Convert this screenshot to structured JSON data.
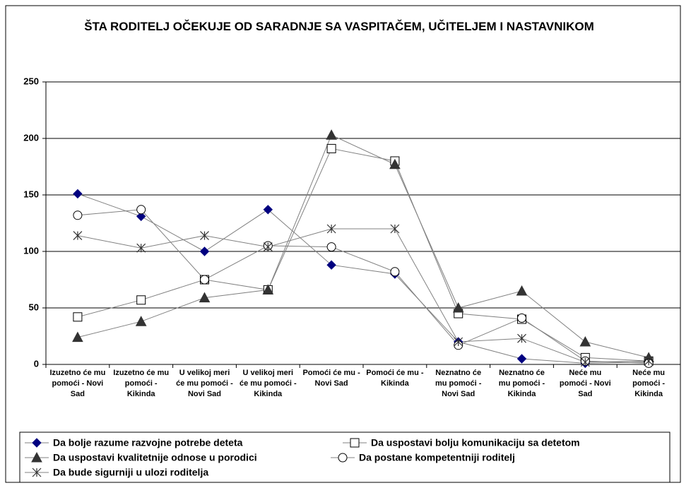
{
  "chart_data": {
    "type": "line",
    "title": "ŠTA RODITELJ OČEKUJE OD SARADNJE SA VASPITAČEM, UČITELJEM I NASTAVNIKOM",
    "categories": [
      "Izuzetno će mu pomoći - Novi Sad",
      "Izuzetno će mu pomoći - Kikinda",
      "U velikoj meri će mu pomoći - Novi Sad",
      "U velikoj meri će mu pomoći - Kikinda",
      "Pomoći će mu - Novi Sad",
      "Pomoći će mu - Kikinda",
      "Neznatno će mu pomoći - Novi Sad",
      "Neznatno će mu pomoći - Kikinda",
      "Neće mu pomoći - Novi Sad",
      "Neće mu pomoći - Kikinda"
    ],
    "series": [
      {
        "name": "Da bolje razume razvojne potrebe deteta",
        "color": "#000080",
        "marker": "diamond",
        "values": [
          151,
          131,
          100,
          137,
          88,
          80,
          20,
          5,
          1,
          2
        ]
      },
      {
        "name": "Da uspostavi bolju komunikaciju sa detetom",
        "color": "#000000",
        "marker": "square",
        "values": [
          42,
          57,
          75,
          66,
          191,
          180,
          45,
          40,
          6,
          3
        ]
      },
      {
        "name": "Da uspostavi kvalitetnije odnose u porodici",
        "color": "#333333",
        "marker": "triangle",
        "values": [
          24,
          38,
          59,
          66,
          203,
          177,
          50,
          65,
          20,
          6
        ]
      },
      {
        "name": "Da postane kompetentniji roditelj",
        "color": "#000000",
        "marker": "circle",
        "values": [
          132,
          137,
          75,
          105,
          104,
          82,
          17,
          41,
          3,
          1
        ]
      },
      {
        "name": "Da bude sigurniji u ulozi roditelja",
        "color": "#333333",
        "marker": "star",
        "values": [
          114,
          103,
          114,
          104,
          120,
          120,
          20,
          23,
          2,
          3
        ]
      }
    ],
    "line_color": "#808080",
    "ylim": [
      0,
      250
    ],
    "yticks": [
      0,
      50,
      100,
      150,
      200,
      250
    ],
    "grid": true,
    "legend": "bottom"
  }
}
